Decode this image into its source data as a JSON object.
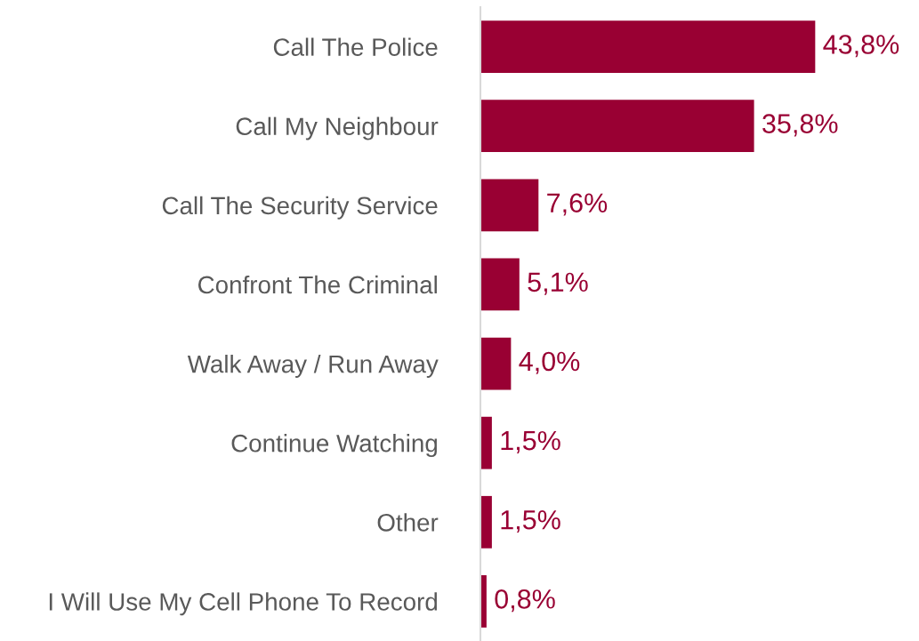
{
  "chart_data": {
    "type": "bar",
    "orientation": "horizontal",
    "categories": [
      "Call The Police",
      "Call My Neighbour",
      "Call The Security Service",
      "Confront The Criminal",
      "Walk Away / Run Away",
      "Continue Watching",
      "Other",
      "I Will Use My Cell Phone To Record"
    ],
    "values": [
      43.8,
      35.8,
      7.6,
      5.1,
      4.0,
      1.5,
      1.5,
      0.8
    ],
    "value_labels": [
      "43,8%",
      "35,8%",
      "7,6%",
      "5,1%",
      "4,0%",
      "1,5%",
      "1,5%",
      "0,8%"
    ],
    "color": "#990033",
    "grid": false
  }
}
